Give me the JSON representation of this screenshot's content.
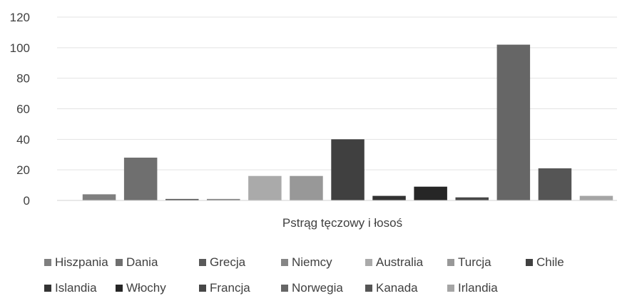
{
  "chart_data": {
    "type": "bar",
    "xlabel": "Pstrąg tęczowy i łosoś",
    "ylim": [
      0,
      120
    ],
    "yticks": [
      0,
      20,
      40,
      60,
      80,
      100,
      120
    ],
    "grid": true,
    "legend_position": "bottom",
    "series": [
      {
        "name": "Hiszpania",
        "value": 4,
        "color": "#7f7f7f"
      },
      {
        "name": "Dania",
        "value": 28,
        "color": "#6f6f6f"
      },
      {
        "name": "Grecja",
        "value": 1,
        "color": "#595959"
      },
      {
        "name": "Niemcy",
        "value": 1,
        "color": "#858585"
      },
      {
        "name": "Australia",
        "value": 16,
        "color": "#aaaaaa"
      },
      {
        "name": "Turcja",
        "value": 16,
        "color": "#989898"
      },
      {
        "name": "Chile",
        "value": 40,
        "color": "#404040"
      },
      {
        "name": "Islandia",
        "value": 3,
        "color": "#333333"
      },
      {
        "name": "Włochy",
        "value": 9,
        "color": "#262626"
      },
      {
        "name": "Francja",
        "value": 2,
        "color": "#474747"
      },
      {
        "name": "Norwegia",
        "value": 102,
        "color": "#666666"
      },
      {
        "name": "Kanada",
        "value": 21,
        "color": "#555555"
      },
      {
        "name": "Irlandia",
        "value": 3,
        "color": "#a5a5a5"
      }
    ]
  }
}
